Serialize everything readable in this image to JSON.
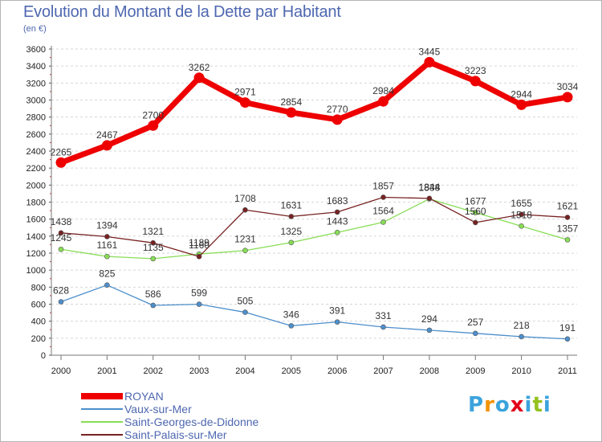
{
  "chart_data": {
    "type": "line",
    "title": "Evolution du Montant de la Dette par Habitant",
    "subtitle": "(en €)",
    "x": [
      "2000",
      "2001",
      "2002",
      "2003",
      "2004",
      "2005",
      "2006",
      "2007",
      "2008",
      "2009",
      "2010",
      "2011"
    ],
    "ylim": [
      0,
      3600
    ],
    "yticks": [
      "0",
      "200",
      "400",
      "600",
      "800",
      "1000",
      "1200",
      "1400",
      "1600",
      "1800",
      "2000",
      "2200",
      "2400",
      "2600",
      "2800",
      "3000",
      "3200",
      "3400",
      "3600"
    ],
    "grid": "horizontal",
    "legend_position": "bottom-left",
    "series": [
      {
        "name": "ROYAN",
        "color": "#ee0000",
        "values": [
          2265,
          2467,
          2700,
          3262,
          2971,
          2854,
          2770,
          2984,
          3445,
          3223,
          2944,
          3034
        ]
      },
      {
        "name": "Vaux-sur-Mer",
        "color": "#4d8fcc",
        "values": [
          628,
          825,
          586,
          599,
          505,
          346,
          391,
          331,
          294,
          257,
          218,
          191
        ]
      },
      {
        "name": "Saint-Georges-de-Didonne",
        "color": "#88dd55",
        "values": [
          1245,
          1161,
          1135,
          1189,
          1231,
          1325,
          1443,
          1564,
          1838,
          1677,
          1518,
          1357
        ]
      },
      {
        "name": "Saint-Palais-sur-Mer",
        "color": "#772222",
        "values": [
          1438,
          1394,
          1321,
          1160,
          1708,
          1631,
          1683,
          1857,
          1844,
          1560,
          1655,
          1621
        ]
      }
    ]
  },
  "logo": {
    "letters": [
      "P",
      "r",
      "o",
      "x",
      "i",
      "t",
      "i"
    ],
    "colors": [
      "#3ba3dc",
      "#f39200",
      "#3ba3dc",
      "#e2001a",
      "#3ba3dc",
      "#95c11f",
      "#3ba3dc"
    ]
  }
}
